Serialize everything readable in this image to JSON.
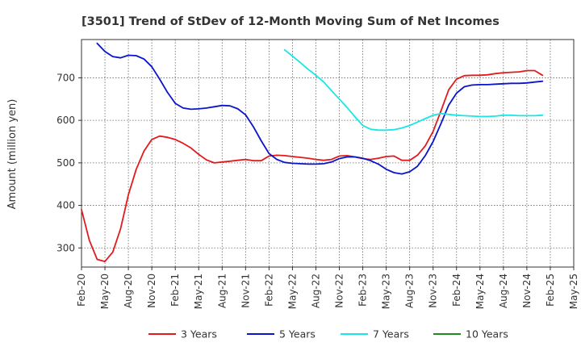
{
  "chart_data": {
    "type": "line",
    "title": "[3501]  Trend of StDev of 12-Month Moving Sum of Net Incomes",
    "xlabel": "",
    "ylabel": "Amount (million yen)",
    "ylim": [
      255,
      790
    ],
    "yticks": [
      300,
      400,
      500,
      600,
      700
    ],
    "xtick_labels": [
      "Feb-20",
      "May-20",
      "Aug-20",
      "Nov-20",
      "Feb-21",
      "May-21",
      "Aug-21",
      "Nov-21",
      "Feb-22",
      "May-22",
      "Aug-22",
      "Nov-22",
      "Feb-23",
      "May-23",
      "Aug-23",
      "Nov-23",
      "Feb-24",
      "May-24",
      "Aug-24",
      "Nov-24",
      "Feb-25",
      "May-25"
    ],
    "x_range_months": [
      0,
      63
    ],
    "grid": true,
    "legend_position": "bottom",
    "series": [
      {
        "name": "3 Years",
        "color": "#e31a1c",
        "points": [
          [
            0,
            390
          ],
          [
            1,
            318
          ],
          [
            2,
            273
          ],
          [
            3,
            268
          ],
          [
            4,
            290
          ],
          [
            5,
            345
          ],
          [
            6,
            425
          ],
          [
            7,
            485
          ],
          [
            8,
            528
          ],
          [
            9,
            555
          ],
          [
            10,
            563
          ],
          [
            11,
            560
          ],
          [
            12,
            555
          ],
          [
            13,
            546
          ],
          [
            14,
            535
          ],
          [
            15,
            520
          ],
          [
            16,
            507
          ],
          [
            17,
            500
          ],
          [
            18,
            502
          ],
          [
            19,
            504
          ],
          [
            20,
            506
          ],
          [
            21,
            508
          ],
          [
            22,
            505
          ],
          [
            23,
            505
          ],
          [
            24,
            516
          ],
          [
            25,
            518
          ],
          [
            26,
            517
          ],
          [
            27,
            515
          ],
          [
            28,
            513
          ],
          [
            29,
            511
          ],
          [
            30,
            508
          ],
          [
            31,
            506
          ],
          [
            32,
            508
          ],
          [
            33,
            516
          ],
          [
            34,
            517
          ],
          [
            35,
            514
          ],
          [
            36,
            510
          ],
          [
            37,
            508
          ],
          [
            38,
            511
          ],
          [
            39,
            515
          ],
          [
            40,
            516
          ],
          [
            41,
            506
          ],
          [
            42,
            506
          ],
          [
            43,
            518
          ],
          [
            44,
            540
          ],
          [
            45,
            574
          ],
          [
            46,
            622
          ],
          [
            47,
            672
          ],
          [
            48,
            697
          ],
          [
            49,
            705
          ],
          [
            50,
            706
          ],
          [
            51,
            706
          ],
          [
            52,
            707
          ],
          [
            53,
            710
          ],
          [
            54,
            712
          ],
          [
            55,
            713
          ],
          [
            56,
            714
          ],
          [
            57,
            717
          ],
          [
            58,
            717
          ],
          [
            59,
            706
          ]
        ]
      },
      {
        "name": "5 Years",
        "color": "#0a14c8",
        "points": [
          [
            2,
            781
          ],
          [
            3,
            762
          ],
          [
            4,
            750
          ],
          [
            5,
            747
          ],
          [
            6,
            753
          ],
          [
            7,
            752
          ],
          [
            8,
            744
          ],
          [
            9,
            726
          ],
          [
            10,
            697
          ],
          [
            11,
            666
          ],
          [
            12,
            640
          ],
          [
            13,
            629
          ],
          [
            14,
            626
          ],
          [
            15,
            627
          ],
          [
            16,
            629
          ],
          [
            17,
            632
          ],
          [
            18,
            635
          ],
          [
            19,
            634
          ],
          [
            20,
            627
          ],
          [
            21,
            613
          ],
          [
            22,
            585
          ],
          [
            23,
            552
          ],
          [
            24,
            522
          ],
          [
            25,
            508
          ],
          [
            26,
            501
          ],
          [
            27,
            499
          ],
          [
            28,
            498
          ],
          [
            29,
            497
          ],
          [
            30,
            497
          ],
          [
            31,
            498
          ],
          [
            32,
            502
          ],
          [
            33,
            510
          ],
          [
            34,
            514
          ],
          [
            35,
            514
          ],
          [
            36,
            511
          ],
          [
            37,
            505
          ],
          [
            38,
            497
          ],
          [
            39,
            485
          ],
          [
            40,
            477
          ],
          [
            41,
            474
          ],
          [
            42,
            479
          ],
          [
            43,
            492
          ],
          [
            44,
            517
          ],
          [
            45,
            550
          ],
          [
            46,
            592
          ],
          [
            47,
            636
          ],
          [
            48,
            664
          ],
          [
            49,
            679
          ],
          [
            50,
            683
          ],
          [
            51,
            684
          ],
          [
            52,
            684
          ],
          [
            53,
            685
          ],
          [
            54,
            686
          ],
          [
            55,
            687
          ],
          [
            56,
            687
          ],
          [
            57,
            688
          ],
          [
            58,
            690
          ],
          [
            59,
            692
          ]
        ]
      },
      {
        "name": "7 Years",
        "color": "#19e6e6",
        "points": [
          [
            26,
            766
          ],
          [
            27,
            751
          ],
          [
            28,
            736
          ],
          [
            29,
            720
          ],
          [
            30,
            706
          ],
          [
            31,
            690
          ],
          [
            32,
            670
          ],
          [
            33,
            650
          ],
          [
            34,
            630
          ],
          [
            35,
            608
          ],
          [
            36,
            588
          ],
          [
            37,
            579
          ],
          [
            38,
            577
          ],
          [
            39,
            577
          ],
          [
            40,
            578
          ],
          [
            41,
            582
          ],
          [
            42,
            588
          ],
          [
            43,
            596
          ],
          [
            44,
            604
          ],
          [
            45,
            612
          ],
          [
            46,
            616
          ],
          [
            47,
            614
          ],
          [
            48,
            612
          ],
          [
            49,
            611
          ],
          [
            50,
            610
          ],
          [
            51,
            609
          ],
          [
            52,
            609
          ],
          [
            53,
            610
          ],
          [
            54,
            612
          ],
          [
            55,
            612
          ],
          [
            56,
            611
          ],
          [
            57,
            611
          ],
          [
            58,
            611
          ],
          [
            59,
            612
          ]
        ]
      },
      {
        "name": "10 Years",
        "color": "#1f8a1f",
        "points": []
      }
    ]
  }
}
